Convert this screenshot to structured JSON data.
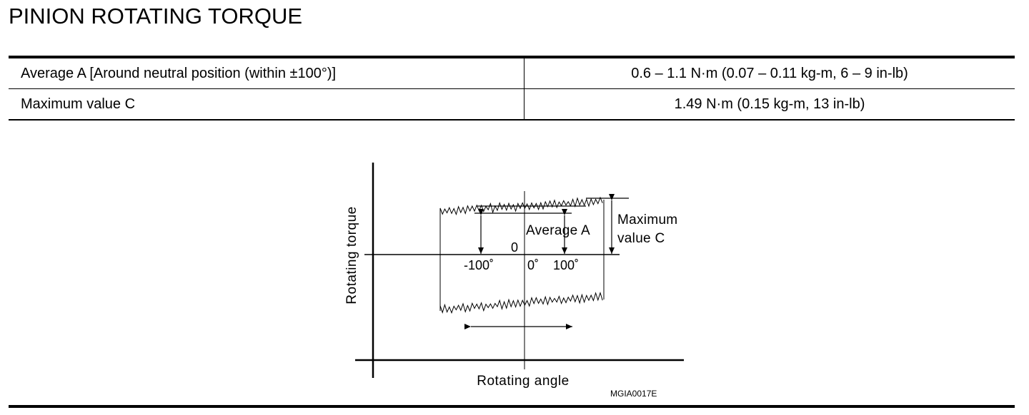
{
  "title": "PINION ROTATING TORQUE",
  "spec_table": {
    "rows": [
      {
        "item": "Average A [Around neutral position (within ±100°)]",
        "value": "0.6 – 1.1 N·m (0.07 – 0.11 kg-m, 6 – 9 in-lb)"
      },
      {
        "item": "Maximum value C",
        "value": "1.49 N·m (0.15 kg-m, 13 in-lb)"
      }
    ]
  },
  "figure": {
    "y_axis_label": "Rotating torque",
    "x_axis_label": "Rotating angle",
    "zero_label": "0",
    "angle_minus": "-100˚",
    "angle_zero": "0˚",
    "angle_plus": "100˚",
    "average_label": "Average A",
    "maximum_label_line1": "Maximum",
    "maximum_label_line2": "value C",
    "figure_id": "MGIA0017E"
  }
}
